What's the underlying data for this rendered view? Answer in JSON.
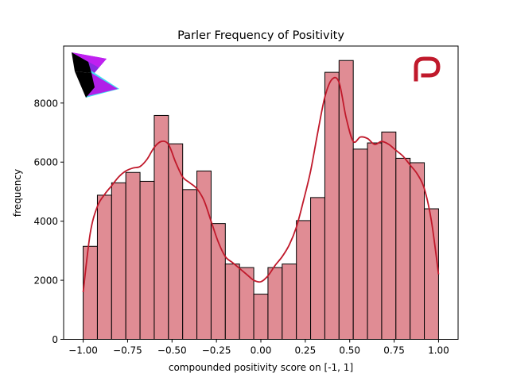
{
  "chart_data": {
    "type": "bar",
    "title": "Parler Frequency of Positivity",
    "xlabel": "compounded positivity score on [-1, 1]",
    "ylabel": "frequency",
    "xlim": [
      -1.11,
      1.11
    ],
    "ylim": [
      0,
      9930
    ],
    "x_ticks": [
      -1.0,
      -0.75,
      -0.5,
      -0.25,
      0.0,
      0.25,
      0.5,
      0.75,
      1.0
    ],
    "x_tick_labels": [
      "−1.00",
      "−0.75",
      "−0.50",
      "−0.25",
      "0.00",
      "0.25",
      "0.50",
      "0.75",
      "1.00"
    ],
    "y_ticks": [
      0,
      2000,
      4000,
      6000,
      8000
    ],
    "y_tick_labels": [
      "0",
      "2000",
      "4000",
      "6000",
      "8000"
    ],
    "grid": false,
    "bin_edges": [
      -1.0,
      -0.92,
      -0.84,
      -0.76,
      -0.68,
      -0.6,
      -0.52,
      -0.44,
      -0.36,
      -0.28,
      -0.2,
      -0.12,
      -0.04,
      0.04,
      0.12,
      0.2,
      0.28,
      0.36,
      0.44,
      0.52,
      0.6,
      0.68,
      0.76,
      0.84,
      0.92,
      1.0
    ],
    "values": [
      3150,
      4880,
      5300,
      5650,
      5350,
      7580,
      6620,
      5070,
      5700,
      3920,
      2550,
      2430,
      1530,
      2430,
      2550,
      4020,
      4800,
      9040,
      9440,
      6440,
      6650,
      7020,
      6130,
      5980,
      4420
    ],
    "kde": {
      "x": [
        -1.0,
        -0.96,
        -0.92,
        -0.88,
        -0.84,
        -0.8,
        -0.76,
        -0.72,
        -0.68,
        -0.64,
        -0.6,
        -0.56,
        -0.52,
        -0.48,
        -0.44,
        -0.4,
        -0.36,
        -0.32,
        -0.28,
        -0.24,
        -0.2,
        -0.16,
        -0.12,
        -0.08,
        -0.04,
        0.0,
        0.04,
        0.08,
        0.12,
        0.16,
        0.2,
        0.24,
        0.28,
        0.32,
        0.36,
        0.4,
        0.44,
        0.48,
        0.52,
        0.56,
        0.6,
        0.64,
        0.68,
        0.72,
        0.76,
        0.8,
        0.84,
        0.88,
        0.92,
        0.96,
        1.0
      ],
      "y": [
        1600,
        3600,
        4500,
        4900,
        5200,
        5500,
        5700,
        5800,
        5850,
        6100,
        6500,
        6700,
        6600,
        6000,
        5500,
        5300,
        5100,
        4700,
        4000,
        3300,
        2800,
        2600,
        2400,
        2200,
        2000,
        1950,
        2150,
        2500,
        2800,
        3200,
        3800,
        4700,
        5700,
        7000,
        8200,
        8800,
        8700,
        7500,
        6700,
        6850,
        6800,
        6600,
        6700,
        6600,
        6400,
        6200,
        5900,
        5600,
        5100,
        4000,
        2200
      ]
    },
    "bar_fill": "#e08c94",
    "bar_edge": "#000000",
    "kde_color": "#c0192b"
  },
  "logos": {
    "left": {
      "name": "parler-style-logo",
      "colors": [
        "#000000",
        "#8a2be2",
        "#c020f0",
        "#40e0f0"
      ]
    },
    "right": {
      "name": "parler-p-logo",
      "color": "#c0192b"
    }
  }
}
